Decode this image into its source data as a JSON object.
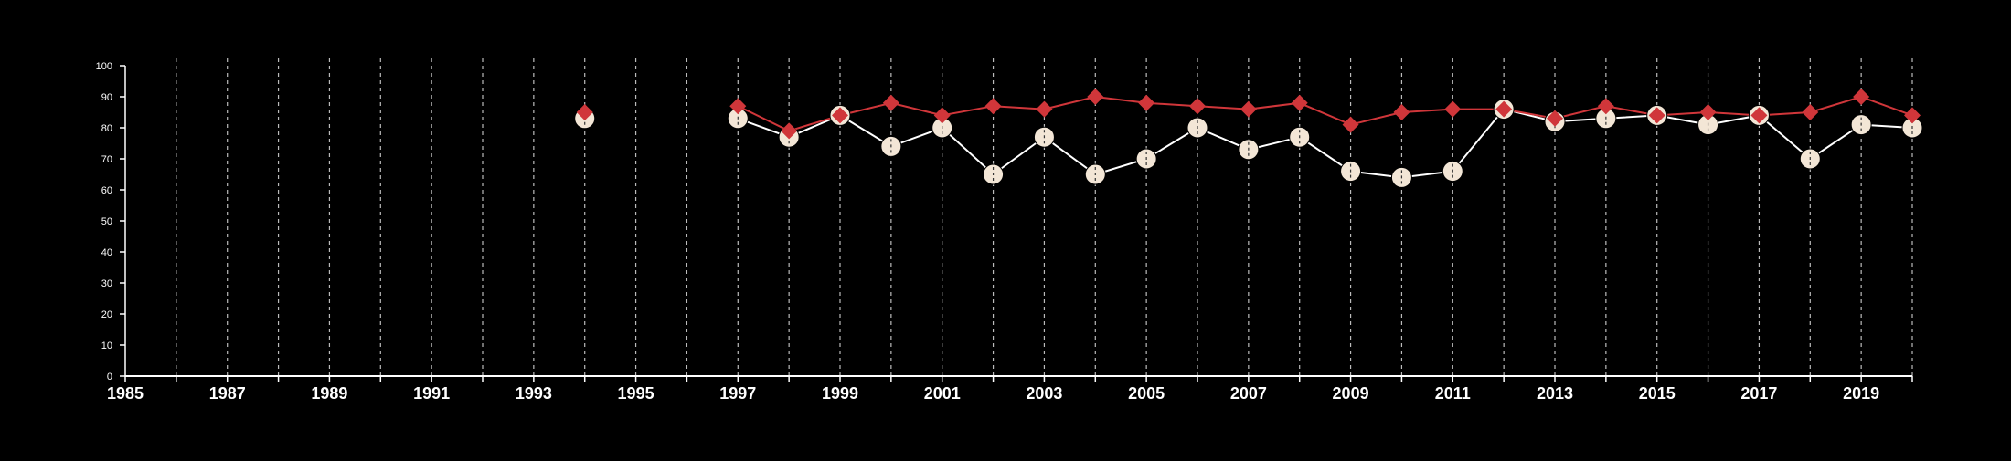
{
  "chart_data": {
    "type": "line",
    "title": "",
    "xlabel": "",
    "ylabel": "",
    "xlim": [
      1985,
      2020
    ],
    "ylim": [
      0,
      100
    ],
    "grid": "vertical dashed at each year",
    "legend": "none",
    "y_ticks": [
      0,
      10,
      20,
      30,
      40,
      50,
      60,
      70,
      80,
      90,
      100
    ],
    "x_ticks": [
      1985,
      1987,
      1989,
      1991,
      1993,
      1995,
      1997,
      1999,
      2001,
      2003,
      2005,
      2007,
      2009,
      2011,
      2013,
      2015,
      2017,
      2019
    ],
    "series": [
      {
        "marker": "circle",
        "color": "#f3e6d6",
        "line_color": "#ffffff",
        "points": [
          [
            1994,
            83
          ],
          [
            1997,
            83
          ],
          [
            1998,
            77
          ],
          [
            1999,
            84
          ],
          [
            2000,
            74
          ],
          [
            2001,
            80
          ],
          [
            2002,
            65
          ],
          [
            2003,
            77
          ],
          [
            2004,
            65
          ],
          [
            2005,
            70
          ],
          [
            2006,
            80
          ],
          [
            2007,
            73
          ],
          [
            2008,
            77
          ],
          [
            2009,
            66
          ],
          [
            2010,
            64
          ],
          [
            2011,
            66
          ],
          [
            2012,
            86
          ],
          [
            2013,
            82
          ],
          [
            2014,
            83
          ],
          [
            2015,
            84
          ],
          [
            2016,
            81
          ],
          [
            2017,
            84
          ],
          [
            2018,
            70
          ],
          [
            2019,
            81
          ],
          [
            2020,
            80
          ]
        ]
      },
      {
        "marker": "diamond",
        "color": "#d0363a",
        "line_color": "#d0363a",
        "points": [
          [
            1994,
            85
          ],
          [
            1997,
            87
          ],
          [
            1998,
            79
          ],
          [
            1999,
            84
          ],
          [
            2000,
            88
          ],
          [
            2001,
            84
          ],
          [
            2002,
            87
          ],
          [
            2003,
            86
          ],
          [
            2004,
            90
          ],
          [
            2005,
            88
          ],
          [
            2006,
            87
          ],
          [
            2007,
            86
          ],
          [
            2008,
            88
          ],
          [
            2009,
            81
          ],
          [
            2010,
            85
          ],
          [
            2011,
            86
          ],
          [
            2012,
            86
          ],
          [
            2013,
            83
          ],
          [
            2014,
            87
          ],
          [
            2015,
            84
          ],
          [
            2016,
            85
          ],
          [
            2017,
            84
          ],
          [
            2018,
            85
          ],
          [
            2019,
            90
          ],
          [
            2020,
            84
          ]
        ]
      }
    ]
  }
}
